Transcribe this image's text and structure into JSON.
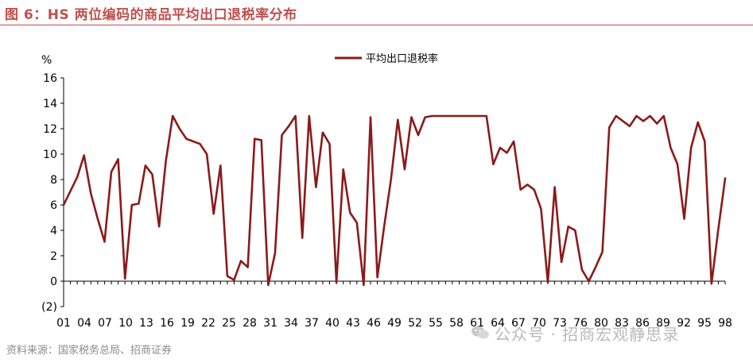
{
  "header": {
    "title": "图 6：HS 两位编码的商品平均出口退税率分布"
  },
  "footer": {
    "source": "资料来源：国家税务总局、招商证券",
    "watermark": "公众号 · 招商宏观静思录"
  },
  "colors": {
    "accent": "#c0504d",
    "series": "#8b1a1a",
    "negative_tick": "#c00000"
  },
  "chart_data": {
    "type": "line",
    "ylabel": "%",
    "ylim": [
      -2,
      16
    ],
    "yticks": [
      {
        "value": 16,
        "label": "16"
      },
      {
        "value": 14,
        "label": "14"
      },
      {
        "value": 12,
        "label": "12"
      },
      {
        "value": 10,
        "label": "10"
      },
      {
        "value": 8,
        "label": "8"
      },
      {
        "value": 6,
        "label": "6"
      },
      {
        "value": 4,
        "label": "4"
      },
      {
        "value": 2,
        "label": "2"
      },
      {
        "value": 0,
        "label": "0"
      },
      {
        "value": -2,
        "label": "(2)"
      }
    ],
    "xticks": [
      "01",
      "04",
      "07",
      "10",
      "13",
      "16",
      "19",
      "22",
      "25",
      "28",
      "31",
      "34",
      "37",
      "40",
      "43",
      "46",
      "49",
      "52",
      "55",
      "58",
      "61",
      "64",
      "67",
      "70",
      "73",
      "76",
      "79",
      "82",
      "85",
      "88",
      "91",
      "94",
      "97"
    ],
    "xtick_labels": [
      "01",
      "04",
      "07",
      "10",
      "13",
      "16",
      "19",
      "22",
      "25",
      "28",
      "31",
      "34",
      "37",
      "40",
      "43",
      "46",
      "49",
      "52",
      "55",
      "58",
      "61",
      "64",
      "67",
      "70",
      "73",
      "76",
      "80",
      "83",
      "86",
      "89",
      "92",
      "95",
      "98"
    ],
    "legend": {
      "position": "top-center"
    },
    "series": [
      {
        "name": "平均出口退税率",
        "x": [
          1,
          2,
          3,
          4,
          5,
          6,
          7,
          8,
          9,
          10,
          11,
          12,
          13,
          14,
          15,
          16,
          17,
          18,
          19,
          20,
          21,
          22,
          23,
          24,
          25,
          26,
          27,
          28,
          29,
          30,
          31,
          32,
          33,
          34,
          35,
          36,
          37,
          38,
          39,
          40,
          41,
          42,
          43,
          44,
          45,
          46,
          47,
          48,
          49,
          50,
          51,
          52,
          53,
          54,
          55,
          56,
          57,
          58,
          59,
          60,
          61,
          62,
          63,
          64,
          65,
          66,
          67,
          68,
          69,
          70,
          71,
          72,
          73,
          74,
          75,
          76,
          77,
          78,
          79,
          80,
          81,
          82,
          83,
          84,
          85,
          86,
          87,
          88,
          89,
          90,
          91,
          92,
          93,
          94,
          95,
          96,
          97,
          98
        ],
        "y": [
          6.0,
          7.1,
          8.2,
          9.9,
          6.9,
          4.9,
          3.1,
          8.6,
          9.6,
          0.2,
          6.0,
          6.1,
          9.1,
          8.4,
          4.3,
          9.5,
          13.0,
          12.0,
          11.2,
          11.0,
          10.8,
          10.0,
          5.3,
          9.1,
          0.4,
          0.1,
          1.6,
          1.1,
          11.2,
          11.1,
          -0.3,
          2.2,
          11.5,
          12.2,
          13.0,
          3.4,
          13.0,
          7.4,
          11.7,
          10.8,
          -0.1,
          8.8,
          5.4,
          4.6,
          -0.3,
          12.9,
          0.3,
          4.3,
          8.0,
          12.7,
          8.8,
          12.9,
          11.5,
          12.9,
          13.0,
          13.0,
          13.0,
          13.0,
          13.0,
          13.0,
          13.0,
          13.0,
          13.0,
          9.2,
          10.5,
          10.1,
          11.0,
          7.2,
          7.6,
          7.2,
          5.7,
          -0.1,
          7.4,
          1.5,
          4.3,
          4.0,
          0.9,
          0.0,
          1.1,
          2.3,
          12.1,
          13.0,
          12.6,
          12.2,
          13.0,
          12.6,
          13.0,
          12.4,
          13.0,
          10.5,
          9.2,
          4.9,
          10.5,
          12.5,
          11.0,
          -0.2,
          4.1,
          8.1
        ]
      }
    ]
  }
}
